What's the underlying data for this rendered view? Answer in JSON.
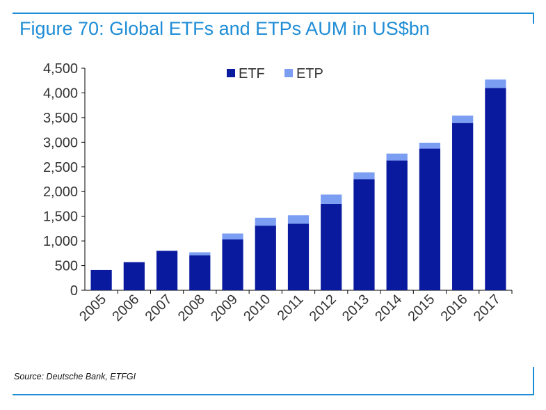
{
  "title": "Figure 70: Global ETFs and ETPs AUM in US$bn",
  "source": "Source: Deutsche Bank, ETFGI",
  "colors": {
    "accent": "#1f8dd6",
    "etf": "#0a1a9e",
    "etp": "#7b9ef2"
  },
  "chart_data": {
    "type": "bar",
    "stacked": true,
    "categories": [
      "2005",
      "2006",
      "2007",
      "2008",
      "2009",
      "2010",
      "2011",
      "2012",
      "2013",
      "2014",
      "2015",
      "2016",
      "2017"
    ],
    "series": [
      {
        "name": "ETF",
        "color": "#0a1a9e",
        "values": [
          410,
          570,
          800,
          710,
          1030,
          1310,
          1350,
          1750,
          2250,
          2630,
          2870,
          3390,
          4100
        ]
      },
      {
        "name": "ETP",
        "color": "#7b9ef2",
        "values": [
          0,
          0,
          0,
          60,
          120,
          160,
          170,
          190,
          140,
          140,
          120,
          150,
          170
        ]
      }
    ],
    "yticks": [
      "0",
      "500",
      "1,000",
      "1,500",
      "2,000",
      "2,500",
      "3,000",
      "3,500",
      "4,000",
      "4,500"
    ],
    "ylim": [
      0,
      4500
    ],
    "legend": {
      "position": "top-center",
      "items": [
        "ETF",
        "ETP"
      ]
    },
    "grid": false
  }
}
